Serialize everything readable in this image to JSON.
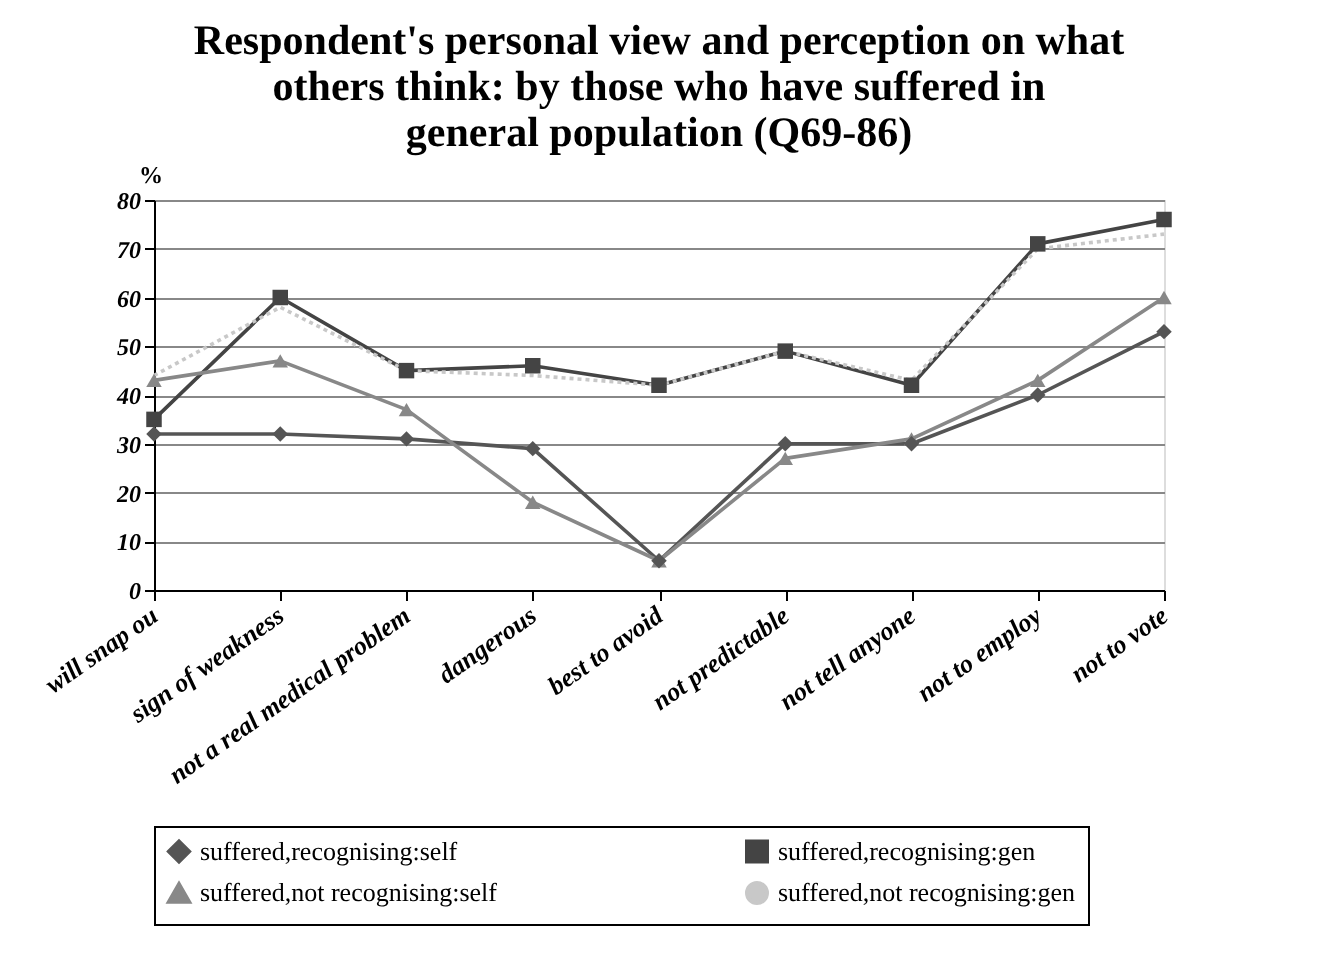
{
  "chart_data": {
    "type": "line",
    "title": [
      "Respondent's personal view and perception on what",
      "others think: by those who have suffered in",
      "general population (Q69-86)"
    ],
    "ylabel": "%",
    "categories": [
      "will snap ou",
      "sign of weakness",
      "not a real medical problem",
      "dangerous",
      "best to avoid",
      "not predictable",
      "not tell anyone",
      "not to employ",
      "not to vote"
    ],
    "series": [
      {
        "name": "suffered,recognising:self",
        "color": "#555555",
        "marker": "diamond",
        "line_style": "solid",
        "values": [
          32,
          32,
          31,
          29,
          6,
          30,
          30,
          40,
          53
        ]
      },
      {
        "name": "suffered,recognising:gen",
        "color": "#444444",
        "marker": "square",
        "line_style": "solid",
        "values": [
          35,
          60,
          45,
          46,
          42,
          49,
          42,
          71,
          76
        ]
      },
      {
        "name": "suffered,not recognising:self",
        "color": "#888888",
        "marker": "triangle",
        "line_style": "solid",
        "values": [
          43,
          47,
          37,
          18,
          6,
          27,
          31,
          43,
          60
        ]
      },
      {
        "name": "suffered,not recognising:gen",
        "color": "#c8c8c8",
        "marker": "none",
        "line_style": "dotted",
        "values": [
          44,
          58,
          45,
          44,
          42,
          49,
          43,
          70,
          73
        ]
      }
    ],
    "ylim": [
      0,
      80
    ],
    "yticks": [
      0,
      10,
      20,
      30,
      40,
      50,
      60,
      70,
      80
    ],
    "grid": "y",
    "legend": "bottom"
  }
}
